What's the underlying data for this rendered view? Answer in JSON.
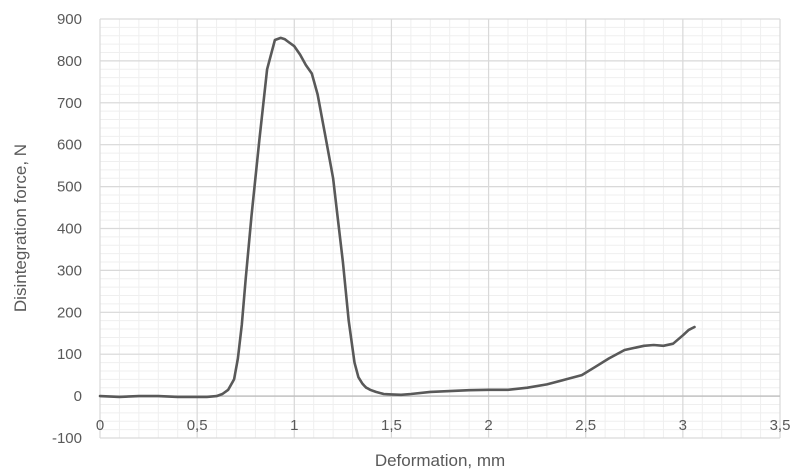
{
  "chart_data": {
    "type": "line",
    "title": "",
    "xlabel": "Deformation, mm",
    "ylabel": "Disintegration force, N",
    "xlim": [
      0,
      3.5
    ],
    "ylim": [
      -100,
      900
    ],
    "x_major_ticks": [
      0,
      0.5,
      1,
      1.5,
      2,
      2.5,
      3,
      3.5
    ],
    "x_tick_labels": [
      "0",
      "0,5",
      "1",
      "1,5",
      "2",
      "2,5",
      "3",
      "3,5"
    ],
    "y_major_ticks": [
      -100,
      0,
      100,
      200,
      300,
      400,
      500,
      600,
      700,
      800,
      900
    ],
    "y_tick_labels": [
      "-100",
      "0",
      "100",
      "200",
      "300",
      "400",
      "500",
      "600",
      "700",
      "800",
      "900"
    ],
    "minor_grid_step_x": 0.1,
    "minor_grid_step_y": 20,
    "grid": true,
    "legend": "none",
    "colors": {
      "line": "#595959",
      "major_grid": "#d9d9d9",
      "minor_grid": "#efefef",
      "zero_axis": "#bfbfbf",
      "text": "#595959"
    },
    "series": [
      {
        "x": [
          0,
          0.1,
          0.2,
          0.3,
          0.4,
          0.5,
          0.55,
          0.6,
          0.63,
          0.66,
          0.69,
          0.71,
          0.73,
          0.75,
          0.78,
          0.82,
          0.86,
          0.9,
          0.93,
          0.95,
          0.97,
          1.0,
          1.03,
          1.06,
          1.09,
          1.12,
          1.16,
          1.2,
          1.22,
          1.25,
          1.28,
          1.31,
          1.33,
          1.35,
          1.36,
          1.37,
          1.38,
          1.39,
          1.42,
          1.46,
          1.5,
          1.55,
          1.6,
          1.7,
          1.8,
          1.9,
          2.0,
          2.1,
          2.2,
          2.3,
          2.4,
          2.48,
          2.55,
          2.62,
          2.7,
          2.75,
          2.8,
          2.85,
          2.9,
          2.95,
          3.0,
          3.03,
          3.06
        ],
        "y": [
          0,
          -2,
          0,
          0,
          -2,
          -2,
          -2,
          0,
          5,
          15,
          40,
          90,
          170,
          280,
          430,
          610,
          780,
          850,
          855,
          852,
          845,
          835,
          815,
          790,
          770,
          720,
          620,
          520,
          440,
          320,
          180,
          80,
          45,
          30,
          25,
          20,
          18,
          15,
          10,
          5,
          4,
          3,
          5,
          10,
          12,
          14,
          15,
          15,
          20,
          28,
          40,
          50,
          70,
          90,
          110,
          115,
          120,
          122,
          120,
          125,
          145,
          158,
          165
        ]
      }
    ]
  }
}
